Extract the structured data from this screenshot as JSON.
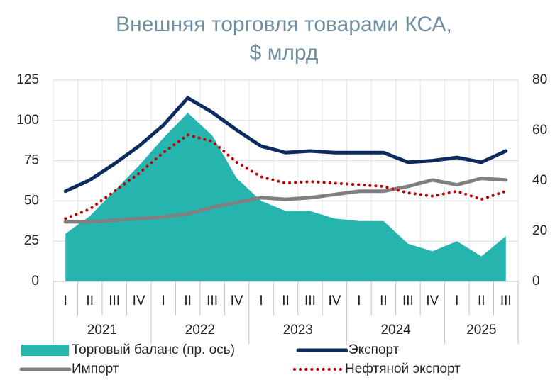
{
  "chart_data": {
    "type": "combo",
    "title": [
      "Внешняя торговля товарами КСА,",
      "$ млрд"
    ],
    "categories": [
      "I",
      "II",
      "III",
      "IV",
      "I",
      "II",
      "III",
      "IV",
      "I",
      "II",
      "III",
      "IV",
      "I",
      "II",
      "III",
      "IV",
      "I",
      "II",
      "III"
    ],
    "groups": [
      {
        "name": "2021",
        "count": 4
      },
      {
        "name": "2022",
        "count": 4
      },
      {
        "name": "2023",
        "count": 4
      },
      {
        "name": "2024",
        "count": 4
      },
      {
        "name": "2025",
        "count": 3
      }
    ],
    "ylim": [
      0,
      125
    ],
    "yticks": [
      0,
      25,
      50,
      75,
      100,
      125
    ],
    "y2lim": [
      0,
      80
    ],
    "y2ticks": [
      0,
      20,
      40,
      60,
      80
    ],
    "grid": true,
    "series": [
      {
        "name": "Торговый баланс (пр. ось)",
        "type": "area",
        "axis": "y2",
        "color": "#26b5ae",
        "values": [
          19,
          26,
          36,
          46,
          57,
          67,
          58,
          41,
          32,
          28,
          28,
          25,
          24,
          24,
          15,
          12,
          16,
          10,
          18
        ]
      },
      {
        "name": "Экспорт",
        "type": "line",
        "color": "#0d2b5e",
        "values": [
          56,
          63,
          73,
          84,
          97,
          114,
          105,
          94,
          84,
          80,
          81,
          80,
          80,
          80,
          74,
          75,
          77,
          74,
          81
        ]
      },
      {
        "name": "Импорт",
        "type": "line",
        "color": "#808080",
        "values": [
          37,
          37,
          38,
          39,
          40,
          42,
          46,
          49,
          52,
          51,
          52,
          54,
          56,
          56,
          59,
          63,
          60,
          64,
          63
        ]
      },
      {
        "name": "Нефтяной экспорт",
        "type": "line",
        "style": "dotted",
        "color": "#c00000",
        "values": [
          39,
          45,
          56,
          67,
          80,
          91,
          87,
          74,
          65,
          61,
          62,
          61,
          60,
          59,
          55,
          53,
          56,
          51,
          56
        ]
      }
    ]
  }
}
